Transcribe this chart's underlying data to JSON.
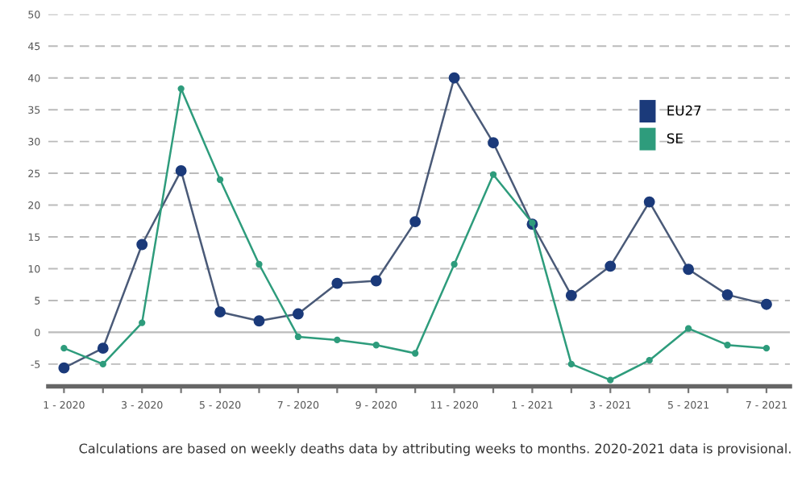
{
  "chart_data": {
    "type": "line",
    "categories": [
      "1 - 2020",
      null,
      "3 - 2020",
      null,
      "5 - 2020",
      null,
      "7 - 2020",
      null,
      "9 - 2020",
      null,
      "11 - 2020",
      null,
      "1 - 2021",
      null,
      "3 - 2021",
      null,
      "5 - 2021",
      null,
      "7 - 2021"
    ],
    "series": [
      {
        "name": "EU27",
        "color": "#1b3a7a",
        "values": [
          -5.6,
          -2.5,
          13.8,
          25.4,
          3.2,
          1.8,
          2.9,
          7.7,
          8.1,
          17.4,
          40,
          29.8,
          17,
          5.8,
          10.4,
          20.5,
          9.9,
          5.9,
          4.4
        ]
      },
      {
        "name": "SE",
        "color": "#2e9c7c",
        "values": [
          -2.5,
          -5,
          1.5,
          38.3,
          24,
          10.7,
          -0.7,
          -1.2,
          -2,
          -3.3,
          10.7,
          24.8,
          17.2,
          -5,
          -7.5,
          -4.4,
          0.6,
          -2,
          -2.5
        ]
      }
    ],
    "ylim": [
      -8.5,
      50
    ],
    "yticks": [
      -5,
      0,
      5,
      10,
      15,
      20,
      25,
      30,
      35,
      40,
      45,
      50
    ],
    "grid": "y",
    "marker": "circle",
    "line_style": "solid",
    "legend": "top right",
    "annotations": [
      "Calculations are based on weekly deaths data by attributing weeks to months. 2020-2021 data is provisional."
    ]
  }
}
